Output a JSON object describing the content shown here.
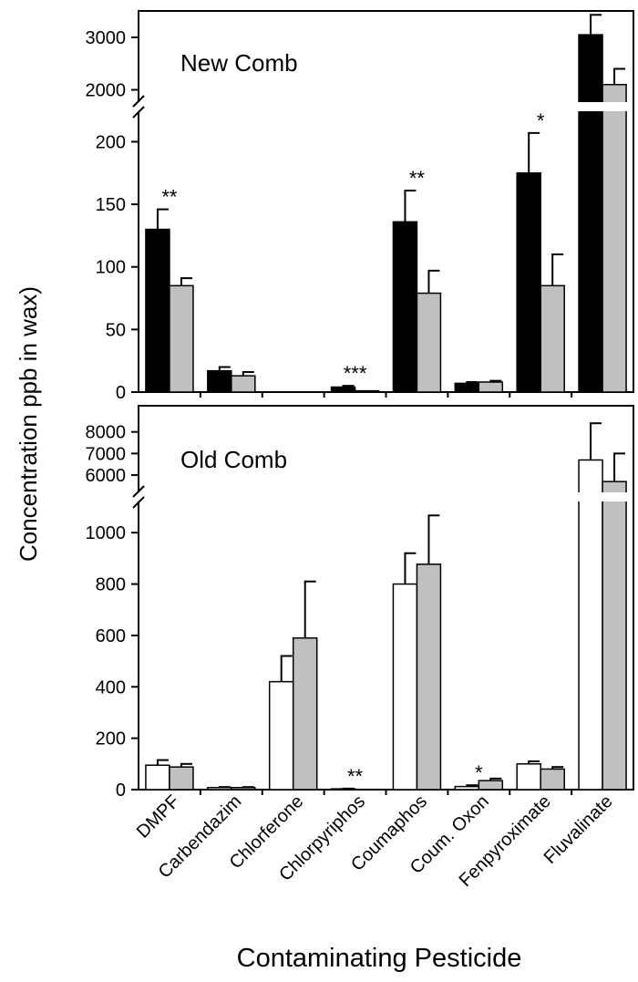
{
  "chart_data": [
    {
      "type": "bar",
      "panel": "top",
      "label": "New Comb",
      "categories": [
        "DMPF",
        "Carbendazim",
        "Chlorferone",
        "Chlorpyriphos",
        "Coumaphos",
        "Coum. Oxon",
        "Fenpyroximate",
        "Fluvalinate"
      ],
      "series": [
        {
          "color": "#000000",
          "values": [
            130,
            17,
            0,
            4,
            136,
            7,
            175,
            3050
          ],
          "errors": [
            16,
            3,
            0,
            1,
            25,
            1,
            32,
            380
          ]
        },
        {
          "color": "#c0c0c0",
          "values": [
            85,
            13,
            0,
            1,
            79,
            8,
            85,
            2100
          ],
          "errors": [
            6,
            3,
            0,
            0,
            18,
            1,
            25,
            300
          ]
        }
      ],
      "significance": [
        "**",
        "",
        "",
        "***",
        "**",
        "",
        "*",
        ""
      ],
      "axis_lower": {
        "ylim": [
          0,
          220
        ],
        "ticks": [
          0,
          50,
          100,
          150,
          200
        ]
      },
      "axis_upper": {
        "ylim": [
          1800,
          3400
        ],
        "ticks": [
          2000,
          3000
        ]
      },
      "axis_break": true
    },
    {
      "type": "bar",
      "panel": "bottom",
      "label": "Old Comb",
      "categories": [
        "DMPF",
        "Carbendazim",
        "Chlorferone",
        "Chlorpyriphos",
        "Coumaphos",
        "Coum. Oxon",
        "Fenpyroximate",
        "Fluvalinate"
      ],
      "series": [
        {
          "color": "#ffffff",
          "values": [
            95,
            8,
            420,
            3,
            800,
            12,
            100,
            6700
          ],
          "errors": [
            20,
            2,
            100,
            1,
            120,
            5,
            10,
            1700
          ]
        },
        {
          "color": "#c0c0c0",
          "values": [
            88,
            8,
            590,
            1,
            877,
            35,
            80,
            5700
          ],
          "errors": [
            12,
            2,
            220,
            0,
            190,
            8,
            8,
            1300
          ]
        }
      ],
      "significance": [
        "",
        "",
        "",
        "**",
        "",
        "*",
        "",
        ""
      ],
      "axis_lower": {
        "ylim": [
          0,
          1100
        ],
        "ticks": [
          0,
          200,
          400,
          600,
          800,
          1000
        ]
      },
      "axis_upper": {
        "ylim": [
          5200,
          9000
        ],
        "ticks": [
          6000,
          7000,
          8000
        ]
      },
      "axis_break": true
    }
  ],
  "ylabel": "Concentration ppb in wax)",
  "xlabel": "Contaminating Pesticide"
}
